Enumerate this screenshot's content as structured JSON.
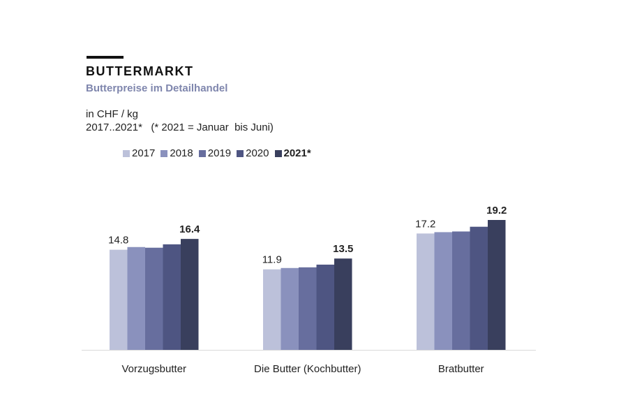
{
  "title": "BUTTERMARKT",
  "subtitle": "Butterpreise  im Detailhandel",
  "unit": "in CHF / kg",
  "period": "2017..2021*   (* 2021 = Januar  bis Juni)",
  "colors": {
    "2017": "#bcc1da",
    "2018": "#8a91bd",
    "2019": "#676e9e",
    "2020": "#4e5582",
    "2021*": "#393f5d"
  },
  "chart_data": {
    "type": "bar",
    "categories": [
      "Vorzugsbutter",
      "Die Butter (Kochbutter)",
      "Bratbutter"
    ],
    "series": [
      {
        "name": "2017",
        "values": [
          14.8,
          11.9,
          17.2
        ]
      },
      {
        "name": "2018",
        "values": [
          15.2,
          12.1,
          17.4
        ]
      },
      {
        "name": "2019",
        "values": [
          15.1,
          12.2,
          17.5
        ]
      },
      {
        "name": "2020",
        "values": [
          15.6,
          12.6,
          18.2
        ]
      },
      {
        "name": "2021*",
        "values": [
          16.4,
          13.5,
          19.2
        ]
      }
    ],
    "data_labels": [
      {
        "series": "2017",
        "category": "Vorzugsbutter",
        "text": "14.8",
        "bold": false
      },
      {
        "series": "2021*",
        "category": "Vorzugsbutter",
        "text": "16.4",
        "bold": true
      },
      {
        "series": "2017",
        "category": "Die Butter (Kochbutter)",
        "text": "11.9",
        "bold": false
      },
      {
        "series": "2021*",
        "category": "Die Butter (Kochbutter)",
        "text": "13.5",
        "bold": true
      },
      {
        "series": "2017",
        "category": "Bratbutter",
        "text": "17.2",
        "bold": false
      },
      {
        "series": "2021*",
        "category": "Bratbutter",
        "text": "19.2",
        "bold": true
      }
    ],
    "legend_bold": [
      "2021*"
    ],
    "ylim": [
      0,
      19.2
    ],
    "grid": false,
    "legend_position": "top-left"
  }
}
